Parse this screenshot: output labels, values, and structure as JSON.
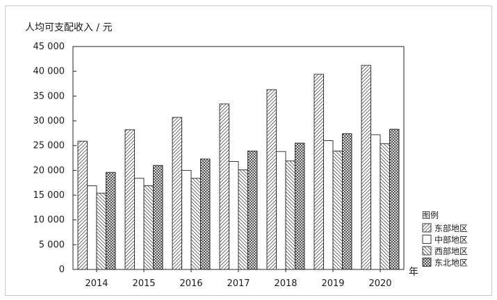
{
  "chart_data": {
    "type": "bar",
    "ylabel": "人均可支配收入 / 元",
    "xlabel": "年",
    "categories": [
      "2014",
      "2015",
      "2016",
      "2017",
      "2018",
      "2019",
      "2020"
    ],
    "ylim": [
      0,
      45000
    ],
    "yticks": [
      0,
      5000,
      10000,
      15000,
      20000,
      25000,
      30000,
      35000,
      40000,
      45000
    ],
    "ytick_labels": [
      "0",
      "5 000",
      "10 000",
      "15 000",
      "20 000",
      "25 000",
      "30 000",
      "35 000",
      "40 000",
      "45 000"
    ],
    "legend_title": "图例",
    "legend_position": "bottom-right outside",
    "grid": false,
    "series": [
      {
        "name": "东部地区",
        "pattern": "diagonal-up",
        "values": [
          25900,
          28200,
          30700,
          33400,
          36300,
          39400,
          41200
        ]
      },
      {
        "name": "中部地区",
        "pattern": "blank",
        "values": [
          16900,
          18400,
          20000,
          21800,
          23800,
          26000,
          27200
        ]
      },
      {
        "name": "西部地区",
        "pattern": "diagonal-down",
        "values": [
          15400,
          16900,
          18400,
          20100,
          21900,
          23900,
          25400
        ]
      },
      {
        "name": "东北地区",
        "pattern": "cross-hatch",
        "values": [
          19600,
          21000,
          22300,
          23900,
          25500,
          27400,
          28300
        ]
      }
    ]
  }
}
